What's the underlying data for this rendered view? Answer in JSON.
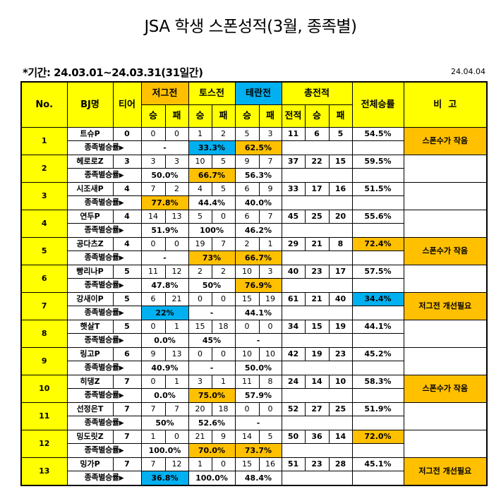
{
  "header": {
    "title": "JSA 학생 스폰성적(3월, 종족별)",
    "period": "*기간: 24.03.01~24.03.31(31일간)",
    "report_date": "24.04.04"
  },
  "colors": {
    "header_yellow": "#FFFF00",
    "highlight_orange": "#FFC000",
    "highlight_blue": "#00B0F0"
  },
  "columns": {
    "no": "No.",
    "bj": "BJ명",
    "tier": "티어",
    "vs_zerg": "저그전",
    "vs_toss": "토스전",
    "vs_terran": "테란전",
    "total": "총전적",
    "overall_rate": "전체승률",
    "note": "비  고",
    "win": "승",
    "loss": "패",
    "games": "전적"
  },
  "sub_label": "종족별승률",
  "sub_arrow": "▶",
  "rows": [
    {
      "no": "1",
      "name": "트슈P",
      "tier": "0",
      "zw": "0",
      "zl": "0",
      "pw": "1",
      "pl": "2",
      "tw": "5",
      "tl": "3",
      "games": "11",
      "wins": "6",
      "losses": "5",
      "rate": "54.5%",
      "zrate": "-",
      "prate": "33.3%",
      "trate": "62.5%",
      "note": "스폰수가 작음"
    },
    {
      "no": "2",
      "name": "헤로로Z",
      "tier": "3",
      "zw": "3",
      "zl": "3",
      "pw": "10",
      "pl": "5",
      "tw": "9",
      "tl": "7",
      "games": "37",
      "wins": "22",
      "losses": "15",
      "rate": "59.5%",
      "zrate": "50.0%",
      "prate": "66.7%",
      "trate": "56.3%",
      "note": ""
    },
    {
      "no": "3",
      "name": "시조새P",
      "tier": "4",
      "zw": "7",
      "zl": "2",
      "pw": "4",
      "pl": "5",
      "tw": "6",
      "tl": "9",
      "games": "33",
      "wins": "17",
      "losses": "16",
      "rate": "51.5%",
      "zrate": "77.8%",
      "prate": "44.4%",
      "trate": "40.0%",
      "note": ""
    },
    {
      "no": "4",
      "name": "연두P",
      "tier": "4",
      "zw": "14",
      "zl": "13",
      "pw": "5",
      "pl": "0",
      "tw": "6",
      "tl": "7",
      "games": "45",
      "wins": "25",
      "losses": "20",
      "rate": "55.6%",
      "zrate": "51.9%",
      "prate": "100%",
      "trate": "46.2%",
      "note": ""
    },
    {
      "no": "5",
      "name": "공다츠Z",
      "tier": "4",
      "zw": "0",
      "zl": "0",
      "pw": "19",
      "pl": "7",
      "tw": "2",
      "tl": "1",
      "games": "29",
      "wins": "21",
      "losses": "8",
      "rate": "72.4%",
      "zrate": "-",
      "prate": "73%",
      "trate": "66.7%",
      "note": "스폰수가 작음"
    },
    {
      "no": "6",
      "name": "빵리나P",
      "tier": "5",
      "zw": "11",
      "zl": "12",
      "pw": "2",
      "pl": "2",
      "tw": "10",
      "tl": "3",
      "games": "40",
      "wins": "23",
      "losses": "17",
      "rate": "57.5%",
      "zrate": "47.8%",
      "prate": "50%",
      "trate": "76.9%",
      "note": ""
    },
    {
      "no": "7",
      "name": "강새이P",
      "tier": "5",
      "zw": "6",
      "zl": "21",
      "pw": "0",
      "pl": "0",
      "tw": "15",
      "tl": "19",
      "games": "61",
      "wins": "21",
      "losses": "40",
      "rate": "34.4%",
      "zrate": "22%",
      "prate": "-",
      "trate": "44.1%",
      "note": "저그전 개선필요"
    },
    {
      "no": "8",
      "name": "햇살T",
      "tier": "5",
      "zw": "0",
      "zl": "1",
      "pw": "15",
      "pl": "18",
      "tw": "0",
      "tl": "0",
      "games": "34",
      "wins": "15",
      "losses": "19",
      "rate": "44.1%",
      "zrate": "0.0%",
      "prate": "45%",
      "trate": "-",
      "note": ""
    },
    {
      "no": "9",
      "name": "링고P",
      "tier": "6",
      "zw": "9",
      "zl": "13",
      "pw": "0",
      "pl": "0",
      "tw": "10",
      "tl": "10",
      "games": "42",
      "wins": "19",
      "losses": "23",
      "rate": "45.2%",
      "zrate": "40.9%",
      "prate": "-",
      "trate": "50.0%",
      "note": ""
    },
    {
      "no": "10",
      "name": "히댕Z",
      "tier": "7",
      "zw": "0",
      "zl": "1",
      "pw": "3",
      "pl": "1",
      "tw": "11",
      "tl": "8",
      "games": "24",
      "wins": "14",
      "losses": "10",
      "rate": "58.3%",
      "zrate": "0.0%",
      "prate": "75.0%",
      "trate": "57.9%",
      "note": "스폰수가 작음"
    },
    {
      "no": "11",
      "name": "선정은T",
      "tier": "7",
      "zw": "7",
      "zl": "7",
      "pw": "20",
      "pl": "18",
      "tw": "0",
      "tl": "0",
      "games": "52",
      "wins": "27",
      "losses": "25",
      "rate": "51.9%",
      "zrate": "50%",
      "prate": "52.6%",
      "trate": "-",
      "note": ""
    },
    {
      "no": "12",
      "name": "밍도릿Z",
      "tier": "7",
      "zw": "1",
      "zl": "0",
      "pw": "21",
      "pl": "9",
      "tw": "14",
      "tl": "5",
      "games": "50",
      "wins": "36",
      "losses": "14",
      "rate": "72.0%",
      "zrate": "100.0%",
      "prate": "70.0%",
      "trate": "73.7%",
      "note": ""
    },
    {
      "no": "13",
      "name": "밍가P",
      "tier": "7",
      "zw": "7",
      "zl": "12",
      "pw": "1",
      "pl": "0",
      "tw": "15",
      "tl": "16",
      "games": "51",
      "wins": "23",
      "losses": "28",
      "rate": "45.1%",
      "zrate": "36.8%",
      "prate": "100.0%",
      "trate": "48.4%",
      "note": "저그전 개선필요"
    }
  ]
}
